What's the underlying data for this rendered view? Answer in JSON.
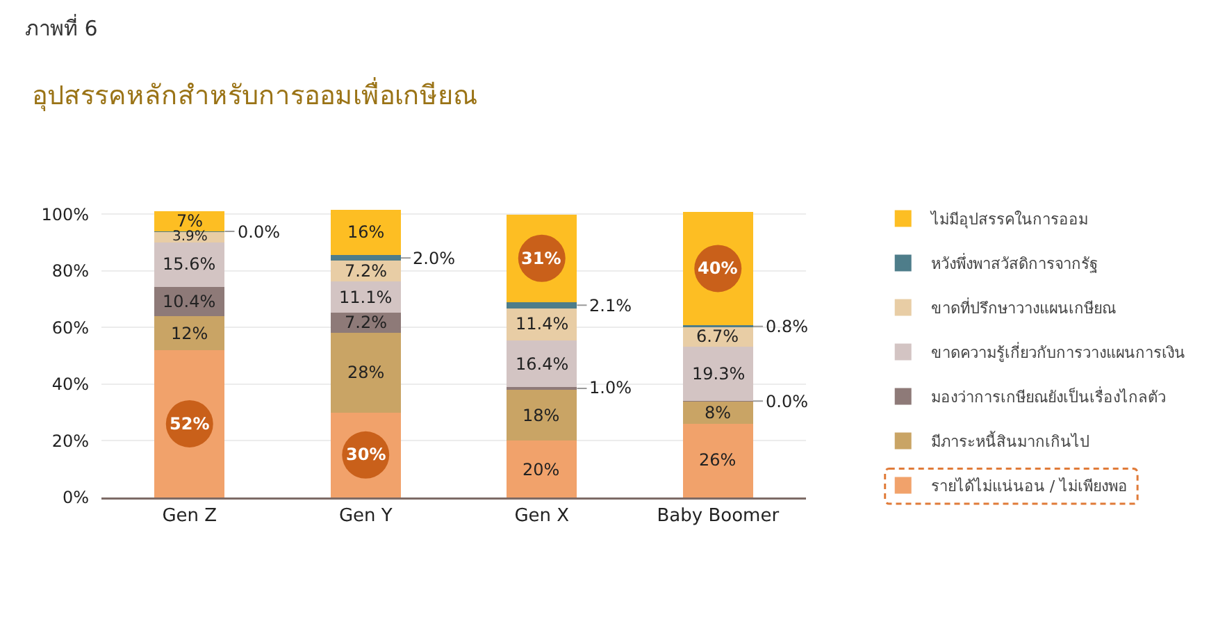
{
  "chart_data": {
    "type": "bar",
    "stacked": true,
    "title": "ภาพที่ 6",
    "subtitle": "อุปสรรคหลักสำหรับการออมเพื่อเกษียณ",
    "categories": [
      "Gen Z",
      "Gen Y",
      "Gen X",
      "Baby Boomer"
    ],
    "ylim": [
      0,
      101.5
    ],
    "yticks": [
      {
        "value": 0,
        "label": "0%"
      },
      {
        "value": 20,
        "label": "20%"
      },
      {
        "value": 40,
        "label": "40%"
      },
      {
        "value": 60,
        "label": "60%"
      },
      {
        "value": 80,
        "label": "80%"
      },
      {
        "value": 100,
        "label": "100%"
      }
    ],
    "grid": "y",
    "legend": "right",
    "series": [
      {
        "name": "รายได้ไม่แน่นอน / ไม่เพียงพอ",
        "color": "#f1a26b",
        "values": [
          52,
          30,
          20,
          26
        ],
        "value_labels": [
          "52%",
          "30%",
          "20%",
          "26%"
        ]
      },
      {
        "name": "มีภาระหนี้สินมากเกินไป",
        "color": "#c9a465",
        "values": [
          12,
          28,
          18,
          8
        ],
        "value_labels": [
          "12%",
          "28%",
          "18%",
          "8%"
        ]
      },
      {
        "name": "มองว่าการเกษียณยังเป็นเรื่องไกลตัว",
        "color": "#8e7a78",
        "values": [
          10.4,
          7.2,
          1.0,
          0.0
        ],
        "value_labels": [
          "10.4%",
          "7.2%",
          "1.0%",
          "0.0%"
        ]
      },
      {
        "name": "ขาดความรู้เกี่ยวกับการวางแผนการเงิน",
        "color": "#d3c4c3",
        "values": [
          15.6,
          11.1,
          16.4,
          19.3
        ],
        "value_labels": [
          "15.6%",
          "11.1%",
          "16.4%",
          "19.3%"
        ]
      },
      {
        "name": "ขาดที่ปรึกษาวางแผนเกษียณ",
        "color": "#e8cda5",
        "values": [
          3.9,
          7.2,
          11.4,
          6.7
        ],
        "value_labels": [
          "3.9%",
          "7.2%",
          "11.4%",
          "6.7%"
        ]
      },
      {
        "name": "หวังพึ่งพาสวัสดิการจากรัฐ",
        "color": "#4e7d8a",
        "values": [
          0.0,
          2.0,
          2.1,
          0.8
        ],
        "value_labels": [
          "0.0%",
          "2.0%",
          "2.1%",
          "0.8%"
        ]
      },
      {
        "name": "ไม่มีอุปสรรคในการออม",
        "color": "#fdbe23",
        "values": [
          7,
          16,
          31,
          40
        ],
        "value_labels": [
          "7%",
          "16%",
          "31%",
          "40%"
        ]
      }
    ]
  }
}
